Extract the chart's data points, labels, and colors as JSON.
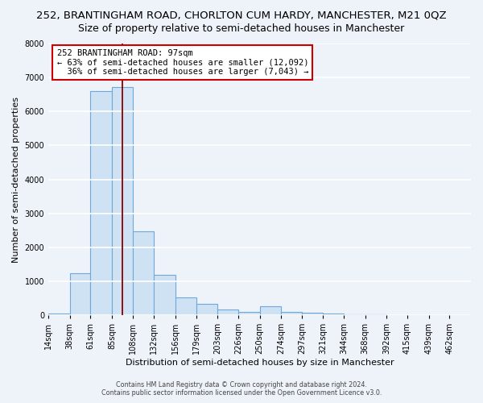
{
  "title_main": "252, BRANTINGHAM ROAD, CHORLTON CUM HARDY, MANCHESTER, M21 0QZ",
  "title_sub": "Size of property relative to semi-detached houses in Manchester",
  "xlabel": "Distribution of semi-detached houses by size in Manchester",
  "ylabel": "Number of semi-detached properties",
  "bar_color": "#cfe2f3",
  "bar_edge_color": "#6fa8dc",
  "background_color": "#eef2f9",
  "grid_color": "#ffffff",
  "vline_x": 97,
  "vline_color": "#8b0000",
  "annotation_title": "252 BRANTINGHAM ROAD: 97sqm",
  "annotation_line1": "← 63% of semi-detached houses are smaller (12,092)",
  "annotation_line2": "  36% of semi-detached houses are larger (7,043) →",
  "annotation_box_color": "#ffffff",
  "annotation_box_edge": "#cc0000",
  "footer1": "Contains HM Land Registry data © Crown copyright and database right 2024.",
  "footer2": "Contains public sector information licensed under the Open Government Licence v3.0.",
  "bins": [
    14,
    38,
    61,
    85,
    108,
    132,
    156,
    179,
    203,
    226,
    250,
    274,
    297,
    321,
    344,
    368,
    392,
    415,
    439,
    462,
    486
  ],
  "counts": [
    60,
    1240,
    6600,
    6720,
    2480,
    1190,
    520,
    330,
    175,
    95,
    255,
    95,
    70,
    50,
    25,
    15,
    10,
    5,
    5,
    5
  ],
  "ylim": [
    0,
    8000
  ],
  "yticks": [
    0,
    1000,
    2000,
    3000,
    4000,
    5000,
    6000,
    7000,
    8000
  ],
  "title_fontsize": 9.5,
  "sub_fontsize": 9,
  "axis_label_fontsize": 8,
  "tick_fontsize": 7
}
